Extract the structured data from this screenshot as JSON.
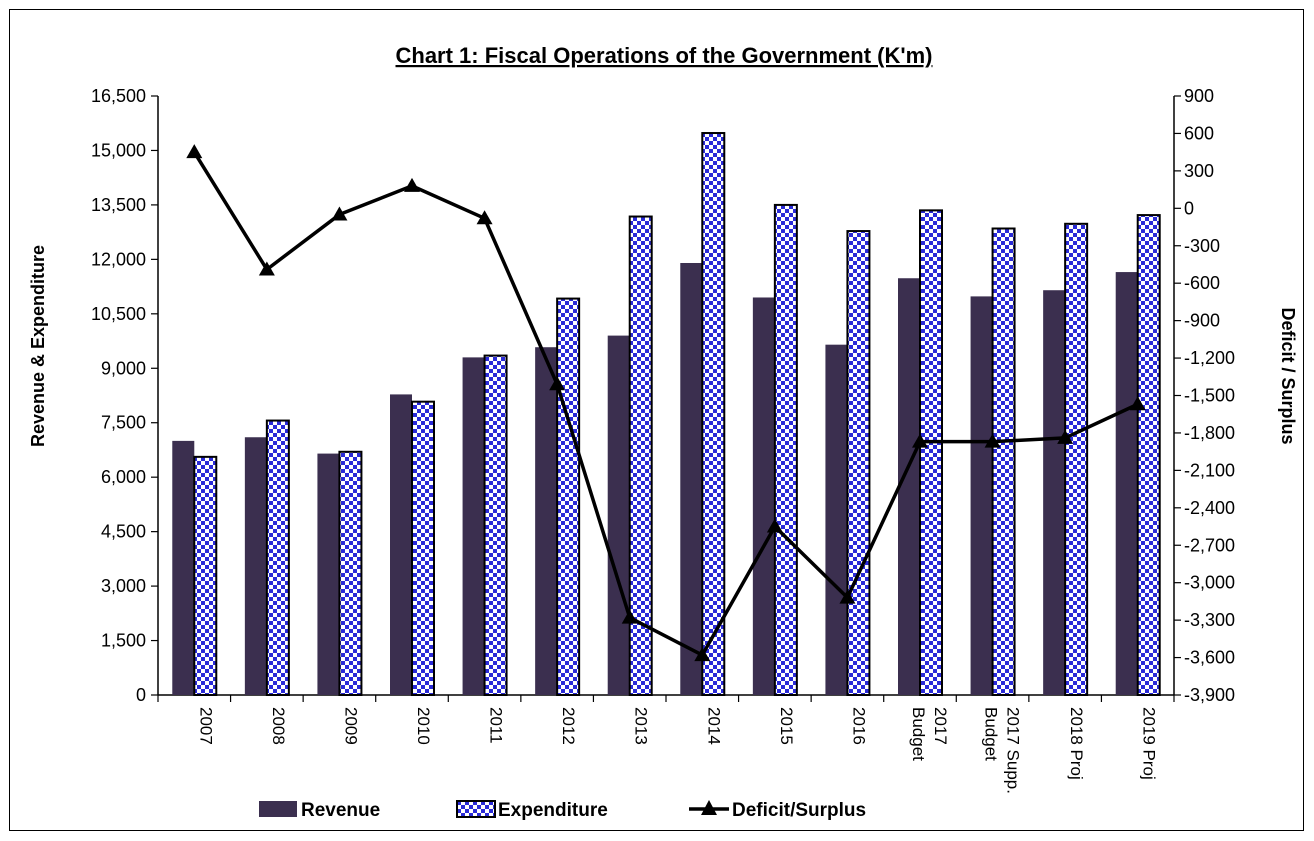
{
  "chart_data": {
    "type": "bar",
    "title": "Chart 1: Fiscal Operations of the Government (K'm)",
    "ylabel": "Revenue & Expenditure",
    "y2label": "Deficit / Surplus",
    "ylim": [
      0,
      16500
    ],
    "yticks": [
      "0",
      "1,500",
      "3,000",
      "4,500",
      "6,000",
      "7,500",
      "9,000",
      "10,500",
      "12,000",
      "13,500",
      "15,000",
      "16,500"
    ],
    "y2lim": [
      -3900,
      900
    ],
    "y2ticks": [
      "-3,900",
      "-3,600",
      "-3,300",
      "-3,000",
      "-2,700",
      "-2,400",
      "-2,100",
      "-1,800",
      "-1,500",
      "-1,200",
      "-900",
      "-600",
      "-300",
      "0",
      "300",
      "600",
      "900"
    ],
    "categories": [
      [
        "2007"
      ],
      [
        "2008"
      ],
      [
        "2009"
      ],
      [
        "2010"
      ],
      [
        "2011"
      ],
      [
        "2012"
      ],
      [
        "2013"
      ],
      [
        "2014"
      ],
      [
        "2015"
      ],
      [
        "2016"
      ],
      [
        "2017",
        "Budget"
      ],
      [
        "2017 Supp.",
        "Budget"
      ],
      [
        "2018 Proj"
      ],
      [
        "2019 Proj"
      ]
    ],
    "series": [
      {
        "name": "Revenue",
        "kind": "bar",
        "color": "#3b2f4f",
        "values": [
          7000,
          7100,
          6650,
          8280,
          9300,
          9580,
          9900,
          11900,
          10950,
          9650,
          11480,
          10980,
          11150,
          11650
        ]
      },
      {
        "name": "Expenditure",
        "kind": "bar",
        "pattern": "blue-white-checker",
        "color": "#2a2ad8",
        "values": [
          6560,
          7560,
          6700,
          8080,
          9350,
          10920,
          13180,
          15480,
          13500,
          12780,
          13350,
          12850,
          12980,
          13220
        ]
      },
      {
        "name": "Deficit/Surplus",
        "kind": "line",
        "axis": "right",
        "marker": "triangle",
        "color": "#000000",
        "values": [
          450,
          -490,
          -50,
          180,
          -80,
          -1410,
          -3280,
          -3580,
          -2550,
          -3120,
          -1870,
          -1870,
          -1840,
          -1570
        ]
      }
    ],
    "legend": {
      "placement": "bottom"
    },
    "grid": false
  }
}
